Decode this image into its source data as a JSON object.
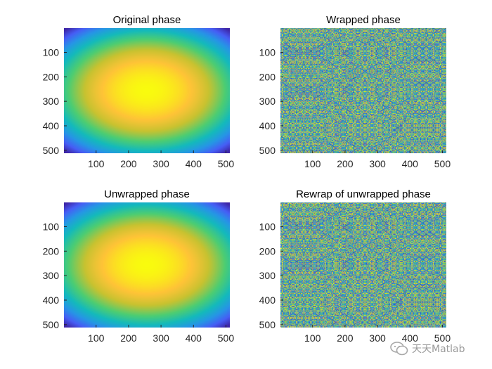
{
  "colormap": "parula",
  "chart_data": [
    {
      "type": "heatmap",
      "title": "Original phase",
      "field": "smooth-paraboloid",
      "peak_center": [
        256,
        256
      ],
      "xlim": [
        1,
        512
      ],
      "ylim": [
        1,
        512
      ],
      "y_direction": "reverse",
      "xticks": [
        100,
        200,
        300,
        400,
        500
      ],
      "yticks": [
        100,
        200,
        300,
        400,
        500
      ],
      "grid": false
    },
    {
      "type": "heatmap",
      "title": "Wrapped phase",
      "field": "wrapped-paraboloid",
      "peak_center": [
        256,
        256
      ],
      "xlim": [
        1,
        512
      ],
      "ylim": [
        1,
        512
      ],
      "y_direction": "reverse",
      "xticks": [
        100,
        200,
        300,
        400,
        500
      ],
      "yticks": [
        100,
        200,
        300,
        400,
        500
      ],
      "grid": false
    },
    {
      "type": "heatmap",
      "title": "Unwrapped phase",
      "field": "smooth-paraboloid",
      "peak_center": [
        256,
        256
      ],
      "xlim": [
        1,
        512
      ],
      "ylim": [
        1,
        512
      ],
      "y_direction": "reverse",
      "xticks": [
        100,
        200,
        300,
        400,
        500
      ],
      "yticks": [
        100,
        200,
        300,
        400,
        500
      ],
      "grid": false
    },
    {
      "type": "heatmap",
      "title": "Rewrap of unwrapped phase",
      "field": "wrapped-paraboloid",
      "peak_center": [
        256,
        256
      ],
      "xlim": [
        1,
        512
      ],
      "ylim": [
        1,
        512
      ],
      "y_direction": "reverse",
      "xticks": [
        100,
        200,
        300,
        400,
        500
      ],
      "yticks": [
        100,
        200,
        300,
        400,
        500
      ],
      "grid": false
    }
  ],
  "watermark": {
    "icon": "wechat-icon",
    "text": "天天Matlab"
  }
}
